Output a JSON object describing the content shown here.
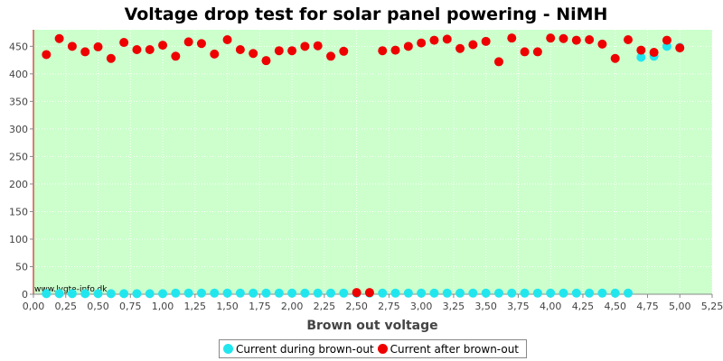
{
  "chart_data": {
    "type": "scatter",
    "title": "Voltage drop test for solar panel powering -  NiMH",
    "xlabel": "Brown out voltage",
    "ylabel": "",
    "xlim": [
      0,
      5.25
    ],
    "ylim": [
      0,
      480
    ],
    "x_ticks": [
      "0,00",
      "0,25",
      "0,50",
      "0,75",
      "1,00",
      "1,25",
      "1,50",
      "1,75",
      "2,00",
      "2,25",
      "2,50",
      "2,75",
      "3,00",
      "3,25",
      "3,50",
      "3,75",
      "4,00",
      "4,25",
      "4,50",
      "4,75",
      "5,00",
      "5,25"
    ],
    "y_ticks": [
      "0",
      "50",
      "100",
      "150",
      "200",
      "250",
      "300",
      "350",
      "400",
      "450"
    ],
    "grid": true,
    "legend_position": "bottom",
    "watermark": "www.lygte-info.dk",
    "series": [
      {
        "name": "Current during brown-out",
        "color": "#22e6ee",
        "x": [
          0.1,
          0.2,
          0.3,
          0.4,
          0.5,
          0.6,
          0.7,
          0.8,
          0.9,
          1.0,
          1.1,
          1.2,
          1.3,
          1.4,
          1.5,
          1.6,
          1.7,
          1.8,
          1.9,
          2.0,
          2.1,
          2.2,
          2.3,
          2.4,
          2.5,
          2.6,
          2.7,
          2.8,
          2.9,
          3.0,
          3.1,
          3.2,
          3.3,
          3.4,
          3.5,
          3.6,
          3.7,
          3.8,
          3.9,
          4.0,
          4.1,
          4.2,
          4.3,
          4.4,
          4.5,
          4.6,
          4.7,
          4.8,
          4.9,
          5.0
        ],
        "y": [
          1,
          1,
          1,
          1,
          1,
          1,
          1,
          1,
          1,
          1,
          2,
          2,
          2,
          2,
          2,
          2,
          2,
          2,
          2,
          2,
          2,
          2,
          2,
          2,
          2,
          2,
          2,
          2,
          2,
          2,
          2,
          2,
          2,
          2,
          2,
          2,
          2,
          2,
          2,
          2,
          2,
          2,
          2,
          2,
          2,
          2,
          430,
          432,
          450,
          448
        ]
      },
      {
        "name": "Current after brown-out",
        "color": "#ee0000",
        "x": [
          0.1,
          0.2,
          0.3,
          0.4,
          0.5,
          0.6,
          0.7,
          0.8,
          0.9,
          1.0,
          1.1,
          1.2,
          1.3,
          1.4,
          1.5,
          1.6,
          1.7,
          1.8,
          1.9,
          2.0,
          2.1,
          2.2,
          2.3,
          2.4,
          2.5,
          2.6,
          2.7,
          2.8,
          2.9,
          3.0,
          3.1,
          3.2,
          3.3,
          3.4,
          3.5,
          3.6,
          3.7,
          3.8,
          3.9,
          4.0,
          4.1,
          4.2,
          4.3,
          4.4,
          4.5,
          4.6,
          4.7,
          4.8,
          4.9,
          5.0
        ],
        "y": [
          435,
          464,
          450,
          440,
          449,
          428,
          457,
          444,
          444,
          452,
          432,
          458,
          455,
          436,
          462,
          444,
          437,
          424,
          442,
          442,
          450,
          451,
          432,
          441,
          3,
          3,
          442,
          443,
          450,
          456,
          461,
          463,
          446,
          453,
          459,
          422,
          465,
          440,
          440,
          465,
          464,
          461,
          462,
          454,
          428,
          462,
          443,
          439,
          461,
          447
        ]
      }
    ]
  }
}
